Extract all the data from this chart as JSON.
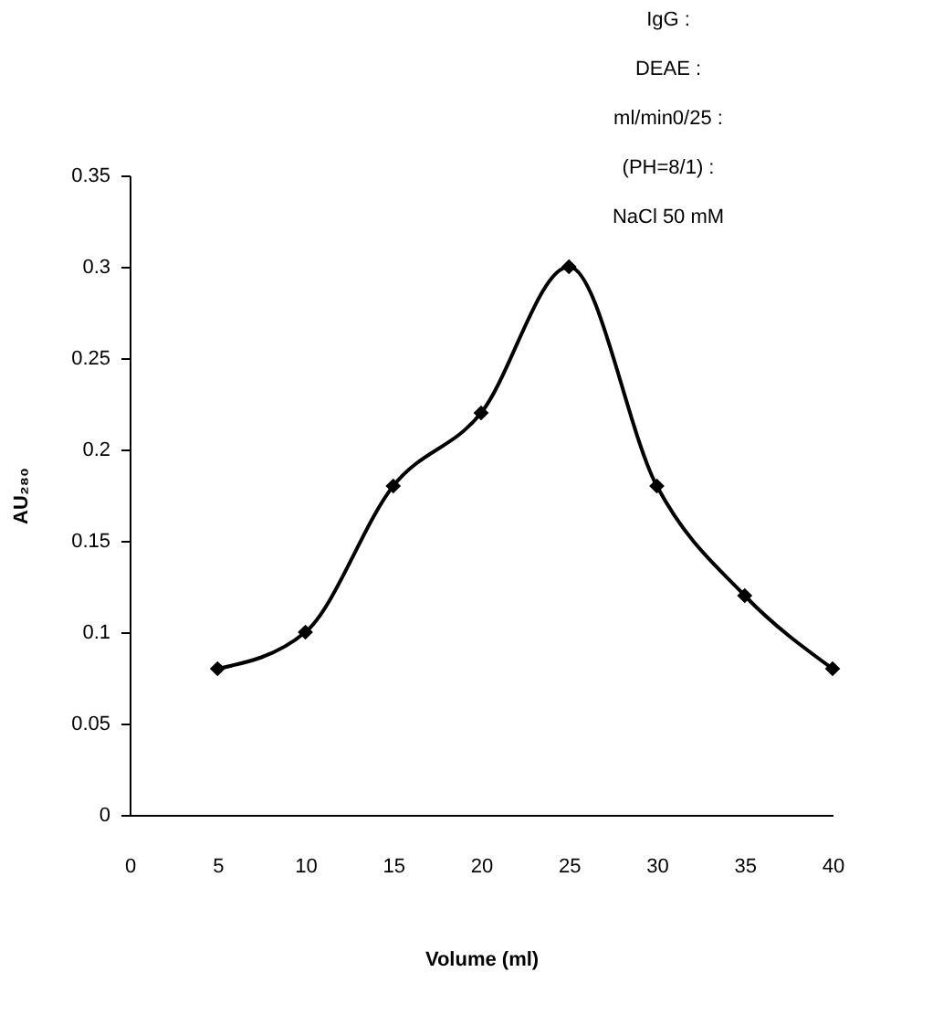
{
  "chart_data": {
    "type": "line",
    "xlabel": "Volume (ml)",
    "ylabel": "AU₂₈₀",
    "x": [
      5,
      10,
      15,
      20,
      25,
      30,
      35,
      40
    ],
    "series": [
      {
        "color": "#000000",
        "values": [
          0.08,
          0.1,
          0.18,
          0.22,
          0.3,
          0.18,
          0.12,
          0.08
        ]
      }
    ],
    "xlim": [
      0,
      40
    ],
    "xticks": [
      0,
      5,
      10,
      15,
      20,
      25,
      30,
      35,
      40
    ],
    "ylim": [
      0,
      0.35
    ],
    "yticks": [
      0,
      0.05,
      0.1,
      0.15,
      0.2,
      0.25,
      0.3,
      0.35
    ],
    "annotations": [
      "IgG :",
      "DEAE :",
      "ml/min0/25 :",
      "(PH=8/1)                    :",
      "NaCl 50 mM"
    ],
    "marker": "diamond",
    "line_style": "solid",
    "grid": false
  }
}
